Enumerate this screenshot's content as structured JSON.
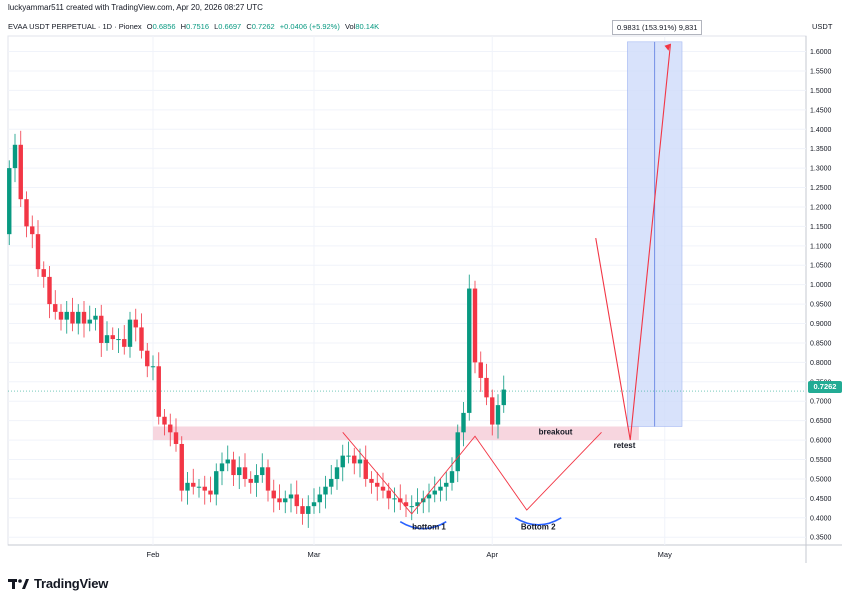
{
  "header": {
    "credit": "luckyammar511 created with TradingView.com, Apr 20, 2026 08:27 UTC",
    "symbol": "EVAA USDT PERPETUAL · 1D · Pionex",
    "o_label": "O",
    "o_value": "0.6856",
    "h_label": "H",
    "h_value": "0.7516",
    "l_label": "L",
    "l_value": "0.6697",
    "c_label": "C",
    "c_value": "0.7262",
    "change": "+0.0406 (+5.92%)",
    "vol_label": "Vol",
    "vol_value": "80.14K"
  },
  "currency": "USDT",
  "last_price": "0.7262",
  "projection_label": "0.9831 (153.91%) 9,831",
  "brand": "TradingView",
  "colors": {
    "up": "#089981",
    "down": "#f23645",
    "pattern": "#f23645",
    "zone": "#f6cfd9",
    "target": "#cfdcfb",
    "neckline_bowl": "#2962ff",
    "price_line": "#22ab94"
  },
  "chart_data": {
    "type": "candlestick",
    "symbol": "EVAA USDT PERPETUAL",
    "interval": "1D",
    "ylim": [
      0.33,
      1.64
    ],
    "y_ticks": [
      "1.6000",
      "1.5500",
      "1.5000",
      "1.4500",
      "1.4000",
      "1.3500",
      "1.3000",
      "1.2500",
      "1.2000",
      "1.1500",
      "1.1000",
      "1.0500",
      "1.0000",
      "0.9500",
      "0.9000",
      "0.8500",
      "0.8000",
      "0.7500",
      "0.7000",
      "0.6500",
      "0.6000",
      "0.5500",
      "0.5000",
      "0.4500",
      "0.4000",
      "0.3500"
    ],
    "x_ticks": [
      {
        "label": "Feb",
        "day": 0
      },
      {
        "label": "Mar",
        "day": 28
      },
      {
        "label": "Apr",
        "day": 59
      },
      {
        "label": "May",
        "day": 89
      }
    ],
    "candles_start_day": -25,
    "closes": [
      1.3,
      1.36,
      1.22,
      1.15,
      1.13,
      1.04,
      1.02,
      0.95,
      0.93,
      0.91,
      0.93,
      0.9,
      0.93,
      0.9,
      0.91,
      0.92,
      0.85,
      0.87,
      0.86,
      0.86,
      0.84,
      0.91,
      0.89,
      0.83,
      0.79,
      0.79,
      0.66,
      0.64,
      0.62,
      0.59,
      0.47,
      0.49,
      0.48,
      0.48,
      0.47,
      0.46,
      0.52,
      0.54,
      0.55,
      0.51,
      0.53,
      0.5,
      0.49,
      0.51,
      0.53,
      0.47,
      0.45,
      0.44,
      0.45,
      0.46,
      0.43,
      0.41,
      0.43,
      0.44,
      0.46,
      0.48,
      0.5,
      0.53,
      0.56,
      0.56,
      0.54,
      0.55,
      0.5,
      0.49,
      0.48,
      0.47,
      0.45,
      0.45,
      0.44,
      0.43,
      0.43,
      0.44,
      0.45,
      0.46,
      0.47,
      0.48,
      0.49,
      0.52,
      0.62,
      0.67,
      0.99,
      0.8,
      0.76,
      0.71,
      0.64,
      0.69,
      0.73
    ],
    "opens": [
      1.13,
      1.3,
      1.36,
      1.22,
      1.15,
      1.13,
      1.04,
      1.02,
      0.95,
      0.93,
      0.91,
      0.93,
      0.9,
      0.93,
      0.9,
      0.91,
      0.92,
      0.85,
      0.87,
      0.86,
      0.86,
      0.84,
      0.91,
      0.89,
      0.83,
      0.79,
      0.79,
      0.66,
      0.64,
      0.62,
      0.59,
      0.47,
      0.49,
      0.48,
      0.48,
      0.47,
      0.46,
      0.52,
      0.54,
      0.55,
      0.51,
      0.53,
      0.5,
      0.49,
      0.51,
      0.53,
      0.47,
      0.45,
      0.44,
      0.45,
      0.46,
      0.43,
      0.41,
      0.43,
      0.44,
      0.46,
      0.48,
      0.5,
      0.53,
      0.56,
      0.56,
      0.54,
      0.55,
      0.5,
      0.49,
      0.48,
      0.47,
      0.45,
      0.45,
      0.44,
      0.43,
      0.43,
      0.44,
      0.45,
      0.46,
      0.47,
      0.48,
      0.49,
      0.52,
      0.62,
      0.67,
      0.99,
      0.8,
      0.76,
      0.71,
      0.64,
      0.69
    ],
    "last": 0.7262,
    "resistance_zone": [
      0.6,
      0.635
    ],
    "target_zone": [
      0.635,
      1.625
    ],
    "projection_path": [
      [
        77,
        1.12
      ],
      [
        83,
        0.6
      ],
      [
        90,
        1.62
      ]
    ],
    "double_bottom_path": [
      [
        33,
        0.62
      ],
      [
        45,
        0.41
      ],
      [
        56,
        0.61
      ],
      [
        65,
        0.42
      ],
      [
        78,
        0.62
      ]
    ],
    "annotations": [
      {
        "text": "bottom 1",
        "x": 48,
        "y": 0.37
      },
      {
        "text": "Bottom 2",
        "x": 67,
        "y": 0.37
      },
      {
        "text": "breakout",
        "x": 70,
        "y": 0.615
      },
      {
        "text": "retest",
        "x": 82,
        "y": 0.58
      }
    ]
  }
}
